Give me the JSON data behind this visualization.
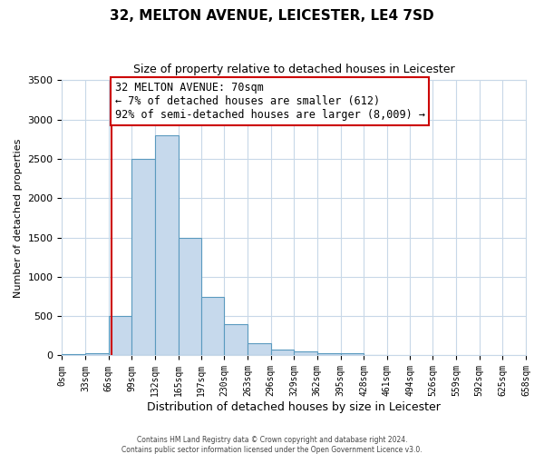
{
  "title": "32, MELTON AVENUE, LEICESTER, LE4 7SD",
  "subtitle": "Size of property relative to detached houses in Leicester",
  "xlabel": "Distribution of detached houses by size in Leicester",
  "ylabel": "Number of detached properties",
  "bar_color": "#c6d9ec",
  "bar_edge_color": "#5a9abf",
  "bin_edges": [
    0,
    33,
    66,
    99,
    132,
    165,
    197,
    230,
    263,
    296,
    329,
    362,
    395,
    428,
    461,
    494,
    526,
    559,
    592,
    625,
    658
  ],
  "bar_heights": [
    20,
    30,
    500,
    2500,
    2800,
    1500,
    750,
    400,
    150,
    75,
    50,
    30,
    25,
    5,
    0,
    0,
    0,
    0,
    0,
    0
  ],
  "property_size": 70,
  "property_line_color": "#cc0000",
  "annotation_text": "32 MELTON AVENUE: 70sqm\n← 7% of detached houses are smaller (612)\n92% of semi-detached houses are larger (8,009) →",
  "annotation_box_color": "#ffffff",
  "annotation_box_edge_color": "#cc0000",
  "ylim": [
    0,
    3500
  ],
  "yticks": [
    0,
    500,
    1000,
    1500,
    2000,
    2500,
    3000,
    3500
  ],
  "tick_labels": [
    "0sqm",
    "33sqm",
    "66sqm",
    "99sqm",
    "132sqm",
    "165sqm",
    "197sqm",
    "230sqm",
    "263sqm",
    "296sqm",
    "329sqm",
    "362sqm",
    "395sqm",
    "428sqm",
    "461sqm",
    "494sqm",
    "526sqm",
    "559sqm",
    "592sqm",
    "625sqm",
    "658sqm"
  ],
  "footer_line1": "Contains HM Land Registry data © Crown copyright and database right 2024.",
  "footer_line2": "Contains public sector information licensed under the Open Government Licence v3.0.",
  "background_color": "#ffffff",
  "grid_color": "#c8d8e8"
}
